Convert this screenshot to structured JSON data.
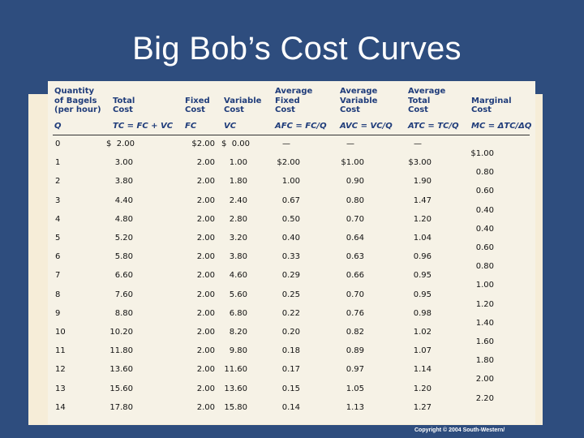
{
  "title": "Big Bob’s Cost Curves",
  "copyright": "Copyright © 2004  South-Western/",
  "table": {
    "headers": [
      {
        "lines": [
          "Quantity",
          "of Bagels",
          "(per hour)"
        ],
        "formula": "Q"
      },
      {
        "lines": [
          "Total",
          "Cost"
        ],
        "formula": "TC = FC + VC"
      },
      {
        "lines": [
          "Fixed",
          "Cost"
        ],
        "formula": "FC"
      },
      {
        "lines": [
          "Variable",
          "Cost"
        ],
        "formula": "VC"
      },
      {
        "lines": [
          "Average",
          "Fixed",
          "Cost"
        ],
        "formula": "AFC = FC/Q"
      },
      {
        "lines": [
          "Average",
          "Variable",
          "Cost"
        ],
        "formula": "AVC = VC/Q"
      },
      {
        "lines": [
          "Average",
          "Total",
          "Cost"
        ],
        "formula": "ATC = TC/Q"
      },
      {
        "lines": [
          "Marginal",
          "Cost"
        ],
        "formula": "MC = ΔTC/ΔQ"
      }
    ],
    "rows": [
      {
        "q": "0",
        "tc": "$  2.00",
        "fc": "$2.00",
        "vc": "$  0.00",
        "afc": "—",
        "avc": "—",
        "atc": "—"
      },
      {
        "q": "1",
        "tc": "3.00",
        "fc": "2.00",
        "vc": "1.00",
        "afc": "$2.00",
        "avc": "$1.00",
        "atc": "$3.00"
      },
      {
        "q": "2",
        "tc": "3.80",
        "fc": "2.00",
        "vc": "1.80",
        "afc": "1.00",
        "avc": "0.90",
        "atc": "1.90"
      },
      {
        "q": "3",
        "tc": "4.40",
        "fc": "2.00",
        "vc": "2.40",
        "afc": "0.67",
        "avc": "0.80",
        "atc": "1.47"
      },
      {
        "q": "4",
        "tc": "4.80",
        "fc": "2.00",
        "vc": "2.80",
        "afc": "0.50",
        "avc": "0.70",
        "atc": "1.20"
      },
      {
        "q": "5",
        "tc": "5.20",
        "fc": "2.00",
        "vc": "3.20",
        "afc": "0.40",
        "avc": "0.64",
        "atc": "1.04"
      },
      {
        "q": "6",
        "tc": "5.80",
        "fc": "2.00",
        "vc": "3.80",
        "afc": "0.33",
        "avc": "0.63",
        "atc": "0.96"
      },
      {
        "q": "7",
        "tc": "6.60",
        "fc": "2.00",
        "vc": "4.60",
        "afc": "0.29",
        "avc": "0.66",
        "atc": "0.95"
      },
      {
        "q": "8",
        "tc": "7.60",
        "fc": "2.00",
        "vc": "5.60",
        "afc": "0.25",
        "avc": "0.70",
        "atc": "0.95"
      },
      {
        "q": "9",
        "tc": "8.80",
        "fc": "2.00",
        "vc": "6.80",
        "afc": "0.22",
        "avc": "0.76",
        "atc": "0.98"
      },
      {
        "q": "10",
        "tc": "10.20",
        "fc": "2.00",
        "vc": "8.20",
        "afc": "0.20",
        "avc": "0.82",
        "atc": "1.02"
      },
      {
        "q": "11",
        "tc": "11.80",
        "fc": "2.00",
        "vc": "9.80",
        "afc": "0.18",
        "avc": "0.89",
        "atc": "1.07"
      },
      {
        "q": "12",
        "tc": "13.60",
        "fc": "2.00",
        "vc": "11.60",
        "afc": "0.17",
        "avc": "0.97",
        "atc": "1.14"
      },
      {
        "q": "13",
        "tc": "15.60",
        "fc": "2.00",
        "vc": "13.60",
        "afc": "0.15",
        "avc": "1.05",
        "atc": "1.20"
      },
      {
        "q": "14",
        "tc": "17.80",
        "fc": "2.00",
        "vc": "15.80",
        "afc": "0.14",
        "avc": "1.13",
        "atc": "1.27"
      }
    ],
    "marginal_cost": [
      "$1.00",
      "0.80",
      "0.60",
      "0.40",
      "0.40",
      "0.60",
      "0.80",
      "1.00",
      "1.20",
      "1.40",
      "1.60",
      "1.80",
      "2.00",
      "2.20"
    ]
  }
}
